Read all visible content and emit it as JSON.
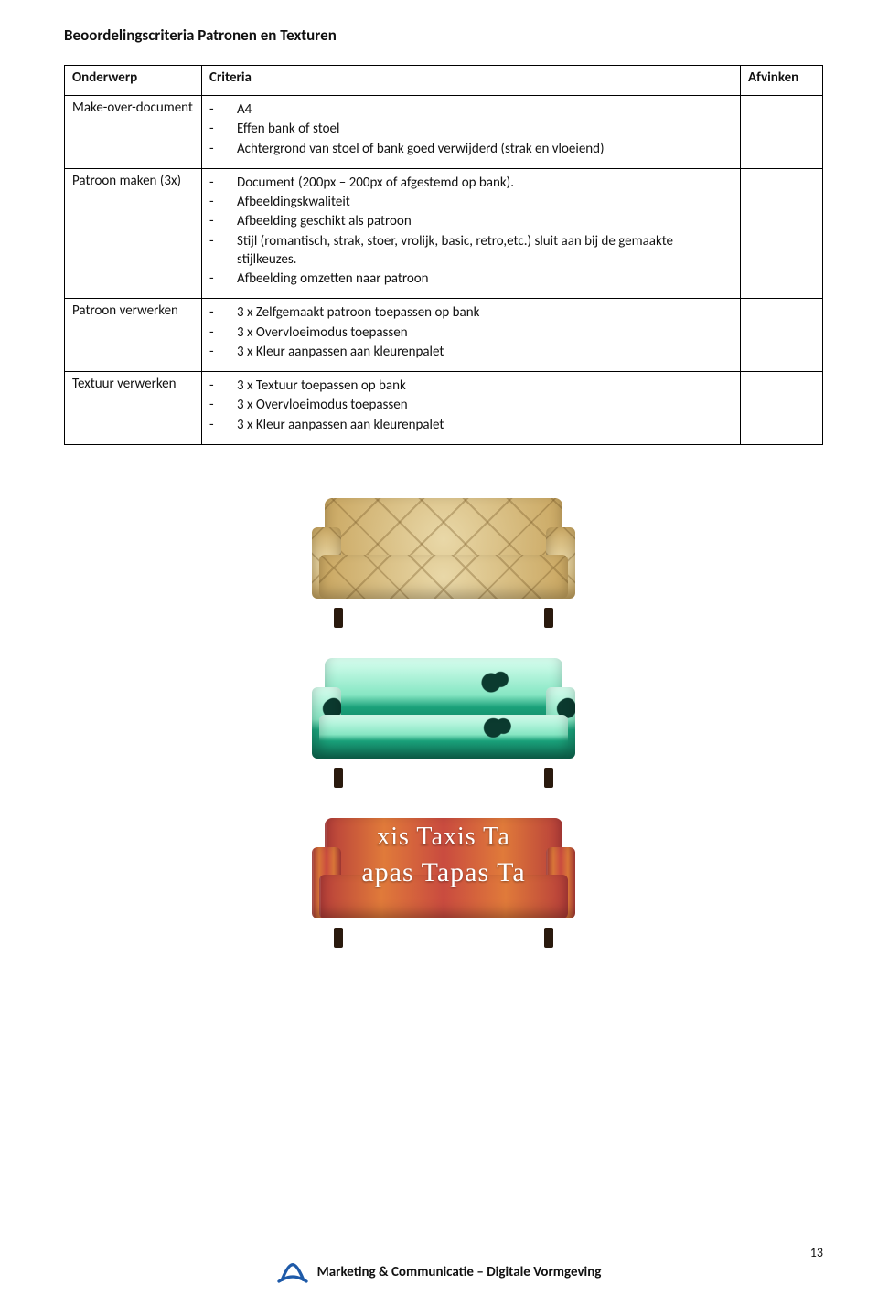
{
  "title": "Beoordelingscriteria Patronen en Texturen",
  "table": {
    "headers": {
      "subject": "Onderwerp",
      "criteria": "Criteria",
      "check": "Afvinken"
    },
    "rows": [
      {
        "subject": "Make-over-document",
        "items": [
          "A4",
          "Effen  bank of stoel",
          "Achtergrond van stoel of bank goed verwijderd (strak en vloeiend)"
        ]
      },
      {
        "subject": "Patroon maken (3x)",
        "items": [
          "Document (200px – 200px of afgestemd op bank).",
          "Afbeeldingskwaliteit",
          "Afbeelding geschikt als patroon",
          "Stijl (romantisch, strak, stoer, vrolijk, basic, retro,etc.) sluit aan bij de gemaakte stijlkeuzes.",
          "Afbeelding omzetten naar patroon"
        ]
      },
      {
        "subject": "Patroon verwerken",
        "items": [
          "3 x Zelfgemaakt patroon toepassen op bank",
          "3 x Overvloeimodus toepassen",
          "3 x Kleur aanpassen aan kleurenpalet"
        ]
      },
      {
        "subject": "Textuur verwerken",
        "items": [
          "3 x Textuur toepassen op bank",
          "3 x Overvloeimodus toepassen",
          "3 x Kleur aanpassen aan kleurenpalet"
        ]
      }
    ]
  },
  "sofa3_text": {
    "line1": "xis  Taxis  Ta",
    "line2": "apas  Tapas  Ta"
  },
  "footer": {
    "text": "Marketing & Communicatie – Digitale Vormgeving",
    "logo_color": "#1e5aa8"
  },
  "page_number": "13",
  "colors": {
    "sofa1_base": "#d7b97a",
    "sofa2_dark": "#0e6f55",
    "sofa3_base": "#c94b3f",
    "leg": "#2a1a0e"
  }
}
